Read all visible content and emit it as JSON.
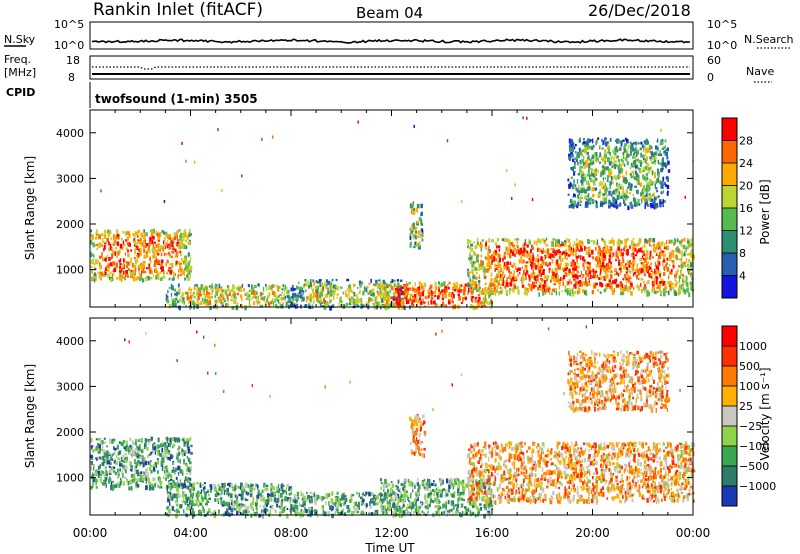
{
  "header": {
    "site": "Rankin Inlet (fitACF)",
    "beam": "Beam 04",
    "date": "26/Dec/2018"
  },
  "top_panels": {
    "nsky_label": "N.Sky",
    "nsearch_label": "N.Search",
    "freq_label": "Freq.",
    "freq_unit": "[MHz]",
    "nave_label": "Nave",
    "cpid_label": "CPID",
    "cpid_value": "twofsound (1-min) 3505",
    "nsky_ticks": [
      "10^5",
      "10^0"
    ],
    "nsearch_ticks": [
      "10^5",
      "10^0"
    ],
    "freq_ticks": [
      "18",
      "8"
    ],
    "nave_ticks": [
      "60",
      "0"
    ]
  },
  "chart_data": [
    {
      "type": "heatmap",
      "name": "Power",
      "ylabel": "Slant Range [km]",
      "ylim": [
        180,
        4500
      ],
      "yticks": [
        1000,
        2000,
        3000,
        4000
      ],
      "xlim_hours": [
        0,
        24
      ],
      "colorbar_label": "Power [dB]",
      "colorbar_ticks": [
        "28",
        "24",
        "20",
        "16",
        "12",
        "8",
        "4"
      ],
      "colormap": [
        "#1414e0",
        "#2860b0",
        "#2e8f70",
        "#53bb4f",
        "#bcd532",
        "#ffaa00",
        "#ff6600",
        "#ff0000"
      ],
      "regions": [
        {
          "t": [
            0.0,
            4.0
          ],
          "r": [
            800,
            1900
          ],
          "level": 0.78
        },
        {
          "t": [
            3.0,
            8.0
          ],
          "r": [
            200,
            700
          ],
          "level": 0.62
        },
        {
          "t": [
            8.0,
            12.5
          ],
          "r": [
            200,
            800
          ],
          "level": 0.55
        },
        {
          "t": [
            11.5,
            16.0
          ],
          "r": [
            200,
            750
          ],
          "level": 0.85
        },
        {
          "t": [
            12.7,
            13.2
          ],
          "r": [
            1500,
            2500
          ],
          "level": 0.55
        },
        {
          "t": [
            15.0,
            24.0
          ],
          "r": [
            500,
            1700
          ],
          "level": 0.82
        },
        {
          "t": [
            19.0,
            23.0
          ],
          "r": [
            2400,
            3900
          ],
          "level": 0.45
        }
      ]
    },
    {
      "type": "heatmap",
      "name": "Velocity",
      "ylabel": "Slant Range [km]",
      "ylim": [
        180,
        4500
      ],
      "yticks": [
        1000,
        2000,
        3000,
        4000
      ],
      "xlim_hours": [
        0,
        24
      ],
      "xticks": [
        "00:00",
        "04:00",
        "08:00",
        "12:00",
        "16:00",
        "20:00",
        "00:00"
      ],
      "xlabel": "Time UT",
      "colorbar_label": "Velocity [m s⁻¹]",
      "colorbar_ticks": [
        "1000",
        "500",
        "100",
        "25",
        "−25",
        "−100",
        "−500",
        "−1000"
      ],
      "colormap": [
        "#1a3ab4",
        "#2e7d6a",
        "#3aa850",
        "#8fd34a",
        "#c8c8c0",
        "#ffb000",
        "#ff7a00",
        "#ff3000",
        "#ff0000"
      ],
      "regions": [
        {
          "t": [
            0.0,
            4.0
          ],
          "r": [
            800,
            1900
          ],
          "level": 0.28
        },
        {
          "t": [
            3.0,
            8.0
          ],
          "r": [
            200,
            900
          ],
          "level": 0.26
        },
        {
          "t": [
            8.0,
            12.5
          ],
          "r": [
            200,
            700
          ],
          "level": 0.3
        },
        {
          "t": [
            11.5,
            16.0
          ],
          "r": [
            200,
            1000
          ],
          "level": 0.32
        },
        {
          "t": [
            12.7,
            13.3
          ],
          "r": [
            1500,
            2400
          ],
          "level": 0.66
        },
        {
          "t": [
            15.0,
            24.0
          ],
          "r": [
            500,
            1800
          ],
          "level": 0.64
        },
        {
          "t": [
            19.0,
            23.0
          ],
          "r": [
            2500,
            3800
          ],
          "level": 0.66
        }
      ]
    }
  ]
}
